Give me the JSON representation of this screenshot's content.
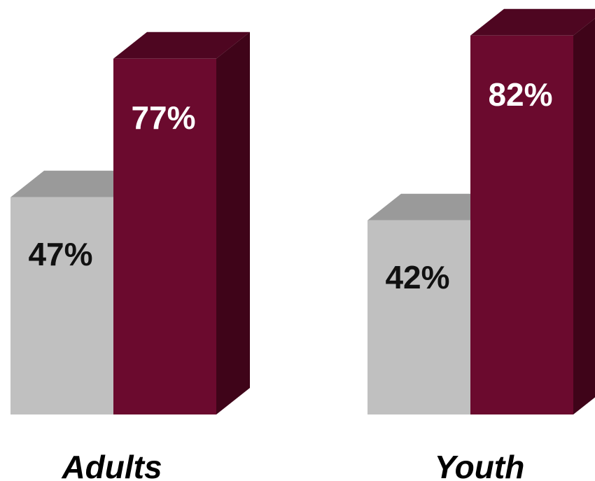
{
  "chart_data": {
    "type": "bar",
    "categories": [
      "Adults",
      "Youth"
    ],
    "series": [
      {
        "values": [
          47,
          42
        ]
      },
      {
        "values": [
          77,
          82
        ]
      }
    ],
    "value_labels": [
      [
        "47%",
        "42%"
      ],
      [
        "77%",
        "82%"
      ]
    ],
    "colors": {
      "series0_front": "#c0c0c0",
      "series0_top": "#9a9a9a",
      "series1_front": "#6b0a2e",
      "series1_top": "#4e0621",
      "series1_side": "#3f0419",
      "label_dark": "#111111",
      "label_light": "#ffffff"
    },
    "style": "3d-columns",
    "grid": false
  }
}
